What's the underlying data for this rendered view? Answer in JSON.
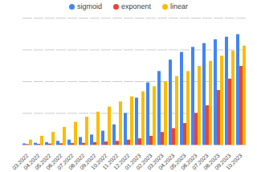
{
  "chart_data": {
    "type": "bar",
    "categories": [
      "03.2022",
      "04.2022",
      "05.2022",
      "06.2022",
      "07.2022",
      "08.2022",
      "09.2022",
      "10.2022",
      "11.2022",
      "12.2022",
      "01.2023",
      "02.2023",
      "03.2023",
      "04.2023",
      "05.2023",
      "06.2023",
      "07.2023",
      "08.2023",
      "09.2023",
      "10.2023"
    ],
    "series": [
      {
        "name": "sigmoid",
        "color": "#4285f4",
        "values": [
          1,
          1.5,
          2,
          3,
          4,
          6,
          8,
          11,
          16,
          25,
          37,
          49,
          58,
          67,
          73,
          77,
          80,
          83,
          85,
          87
        ]
      },
      {
        "name": "exponent",
        "color": "#ea4335",
        "values": [
          0.5,
          0.7,
          0.9,
          1.1,
          1.3,
          1.5,
          2,
          2.5,
          3,
          4,
          5,
          7,
          10,
          13,
          17,
          25,
          31,
          43,
          52,
          62
        ]
      },
      {
        "name": "linear",
        "color": "#fbbc04",
        "values": [
          4,
          7,
          10,
          14,
          18,
          22,
          26,
          30,
          34,
          38,
          42,
          46,
          50,
          54,
          58,
          62,
          66,
          70,
          74,
          78
        ]
      }
    ],
    "ylim": [
      0,
      100
    ],
    "yticks": [
      0,
      25,
      50,
      75,
      100
    ],
    "grid": true,
    "legend": "top",
    "tick_labels": "x"
  }
}
